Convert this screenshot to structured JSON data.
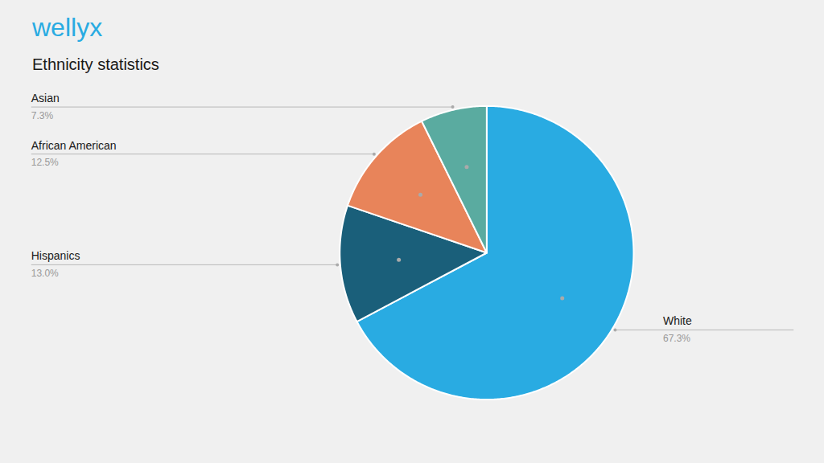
{
  "chart_data": {
    "type": "pie",
    "title": "Ethnicity statistics",
    "annotations": [
      "wellyx"
    ],
    "categories": [
      "White",
      "Hispanics",
      "African American",
      "Asian"
    ],
    "values": [
      67.3,
      13.0,
      12.5,
      7.3
    ],
    "value_labels": [
      "67.3%",
      "13.0%",
      "12.5%",
      "7.3%"
    ],
    "colors": [
      "#29abe2",
      "#1a5f7a",
      "#e8845a",
      "#5aaba0"
    ],
    "data_labels": true
  }
}
